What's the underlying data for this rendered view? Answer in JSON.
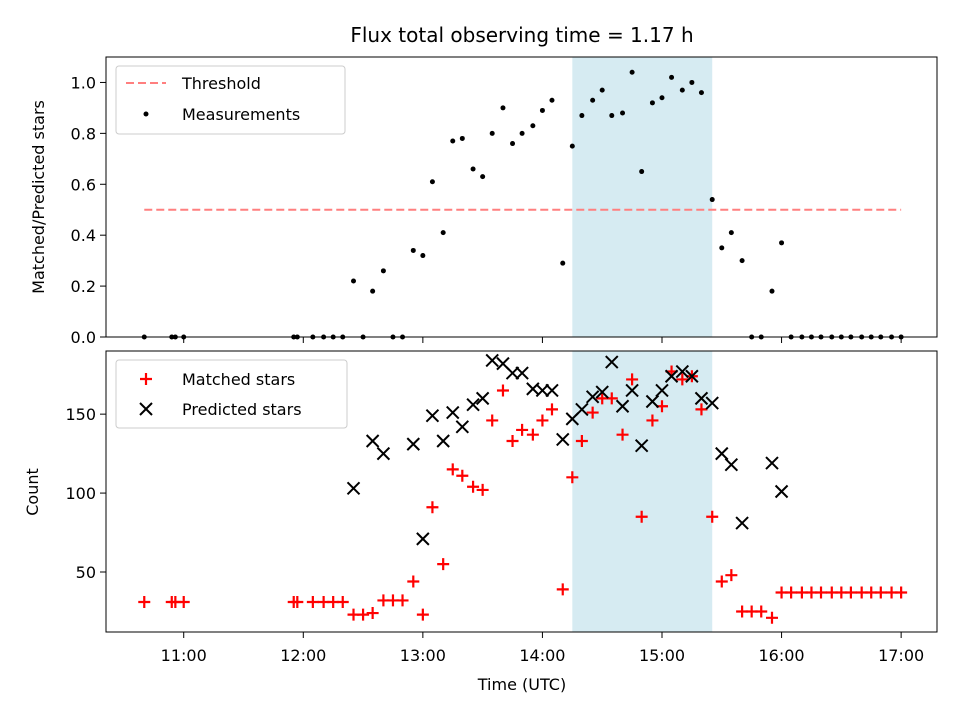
{
  "title": "Flux total observing time = 1.17 h",
  "colors": {
    "threshold": "#ff7f7f",
    "measurement": "#000000",
    "matched": "#ff0000",
    "predicted": "#000000",
    "highlight": "#add8e6"
  },
  "chart_data": [
    {
      "type": "scatter",
      "ylabel": "Matched/Predicted stars",
      "xlim": [
        10.35,
        17.3
      ],
      "ylim": [
        0,
        1.1
      ],
      "yticks": [
        "0.0",
        "0.2",
        "0.4",
        "0.6",
        "0.8",
        "1.0"
      ],
      "grid": false,
      "legend": "top-left",
      "highlight_span": [
        14.25,
        15.42
      ],
      "threshold": {
        "name": "Threshold",
        "value": 0.5,
        "x_range": [
          10.67,
          17.0
        ],
        "style": "dashed"
      },
      "series": [
        {
          "name": "Measurements",
          "marker": "dot",
          "x": [
            10.67,
            10.9,
            10.93,
            11.0,
            11.92,
            11.95,
            12.08,
            12.17,
            12.25,
            12.33,
            12.42,
            12.5,
            12.58,
            12.67,
            12.75,
            12.83,
            12.92,
            13.0,
            13.08,
            13.17,
            13.25,
            13.33,
            13.42,
            13.5,
            13.58,
            13.67,
            13.75,
            13.83,
            13.92,
            14.0,
            14.08,
            14.17,
            14.25,
            14.33,
            14.42,
            14.5,
            14.58,
            14.67,
            14.75,
            14.83,
            14.92,
            15.0,
            15.08,
            15.17,
            15.25,
            15.33,
            15.42,
            15.5,
            15.58,
            15.67,
            15.75,
            15.83,
            15.92,
            16.0,
            16.08,
            16.17,
            16.25,
            16.33,
            16.42,
            16.5,
            16.58,
            16.67,
            16.75,
            16.83,
            16.92,
            17.0
          ],
          "y": [
            0.0,
            0.0,
            0.0,
            0.0,
            0.0,
            0.0,
            0.0,
            0.0,
            0.0,
            0.0,
            0.22,
            0.0,
            0.18,
            0.26,
            0.0,
            0.0,
            0.34,
            0.32,
            0.61,
            0.41,
            0.77,
            0.78,
            0.66,
            0.63,
            0.8,
            0.9,
            0.76,
            0.8,
            0.83,
            0.89,
            0.93,
            0.29,
            0.75,
            0.87,
            0.93,
            0.97,
            0.87,
            0.88,
            1.04,
            0.65,
            0.92,
            0.94,
            1.02,
            0.97,
            1.0,
            0.96,
            0.54,
            0.35,
            0.41,
            0.3,
            0.0,
            0.0,
            0.18,
            0.37,
            0.0,
            0.0,
            0.0,
            0.0,
            0.0,
            0.0,
            0.0,
            0.0,
            0.0,
            0.0,
            0.0,
            0.0
          ]
        }
      ]
    },
    {
      "type": "scatter",
      "xlabel": "Time (UTC)",
      "ylabel": "Count",
      "xlim": [
        10.35,
        17.3
      ],
      "ylim": [
        12,
        190
      ],
      "yticks": [
        "50",
        "100",
        "150"
      ],
      "xticks": [
        "11:00",
        "12:00",
        "13:00",
        "14:00",
        "15:00",
        "16:00",
        "17:00"
      ],
      "grid": false,
      "legend": "top-left",
      "highlight_span": [
        14.25,
        15.42
      ],
      "series": [
        {
          "name": "Matched stars",
          "marker": "plus",
          "x": [
            10.67,
            10.9,
            10.93,
            11.0,
            11.92,
            11.95,
            12.08,
            12.17,
            12.25,
            12.33,
            12.42,
            12.5,
            12.58,
            12.67,
            12.75,
            12.83,
            12.92,
            13.0,
            13.08,
            13.17,
            13.25,
            13.33,
            13.42,
            13.5,
            13.58,
            13.67,
            13.75,
            13.83,
            13.92,
            14.0,
            14.08,
            14.17,
            14.25,
            14.33,
            14.42,
            14.5,
            14.58,
            14.67,
            14.75,
            14.83,
            14.92,
            15.0,
            15.08,
            15.17,
            15.25,
            15.33,
            15.42,
            15.5,
            15.58,
            15.67,
            15.75,
            15.83,
            15.92,
            16.0,
            16.08,
            16.17,
            16.25,
            16.33,
            16.42,
            16.5,
            16.58,
            16.67,
            16.75,
            16.83,
            16.92,
            17.0
          ],
          "y": [
            31,
            31,
            31,
            31,
            31,
            31,
            31,
            31,
            31,
            31,
            23,
            23,
            24,
            32,
            32,
            32,
            44,
            23,
            91,
            55,
            115,
            111,
            104,
            102,
            146,
            165,
            133,
            140,
            137,
            146,
            153,
            39,
            110,
            133,
            151,
            160,
            160,
            137,
            172,
            85,
            146,
            155,
            177,
            172,
            174,
            153,
            85,
            44,
            48,
            25,
            25,
            25,
            21,
            37,
            37,
            37,
            37,
            37,
            37,
            37,
            37,
            37,
            37,
            37,
            37,
            37
          ]
        },
        {
          "name": "Predicted stars",
          "marker": "x",
          "x": [
            12.42,
            12.58,
            12.67,
            12.92,
            13.0,
            13.08,
            13.17,
            13.25,
            13.33,
            13.42,
            13.5,
            13.58,
            13.67,
            13.75,
            13.83,
            13.92,
            14.0,
            14.08,
            14.17,
            14.25,
            14.33,
            14.42,
            14.5,
            14.58,
            14.67,
            14.75,
            14.83,
            14.92,
            15.0,
            15.08,
            15.17,
            15.25,
            15.33,
            15.42,
            15.5,
            15.58,
            15.67,
            15.92,
            16.0
          ],
          "y": [
            103,
            133,
            125,
            131,
            71,
            149,
            133,
            151,
            142,
            156,
            160,
            184,
            182,
            176,
            176,
            166,
            165,
            165,
            134,
            147,
            153,
            161,
            164,
            183,
            155,
            165,
            130,
            158,
            165,
            174,
            177,
            174,
            160,
            157,
            125,
            118,
            81,
            119,
            101
          ]
        }
      ]
    }
  ]
}
